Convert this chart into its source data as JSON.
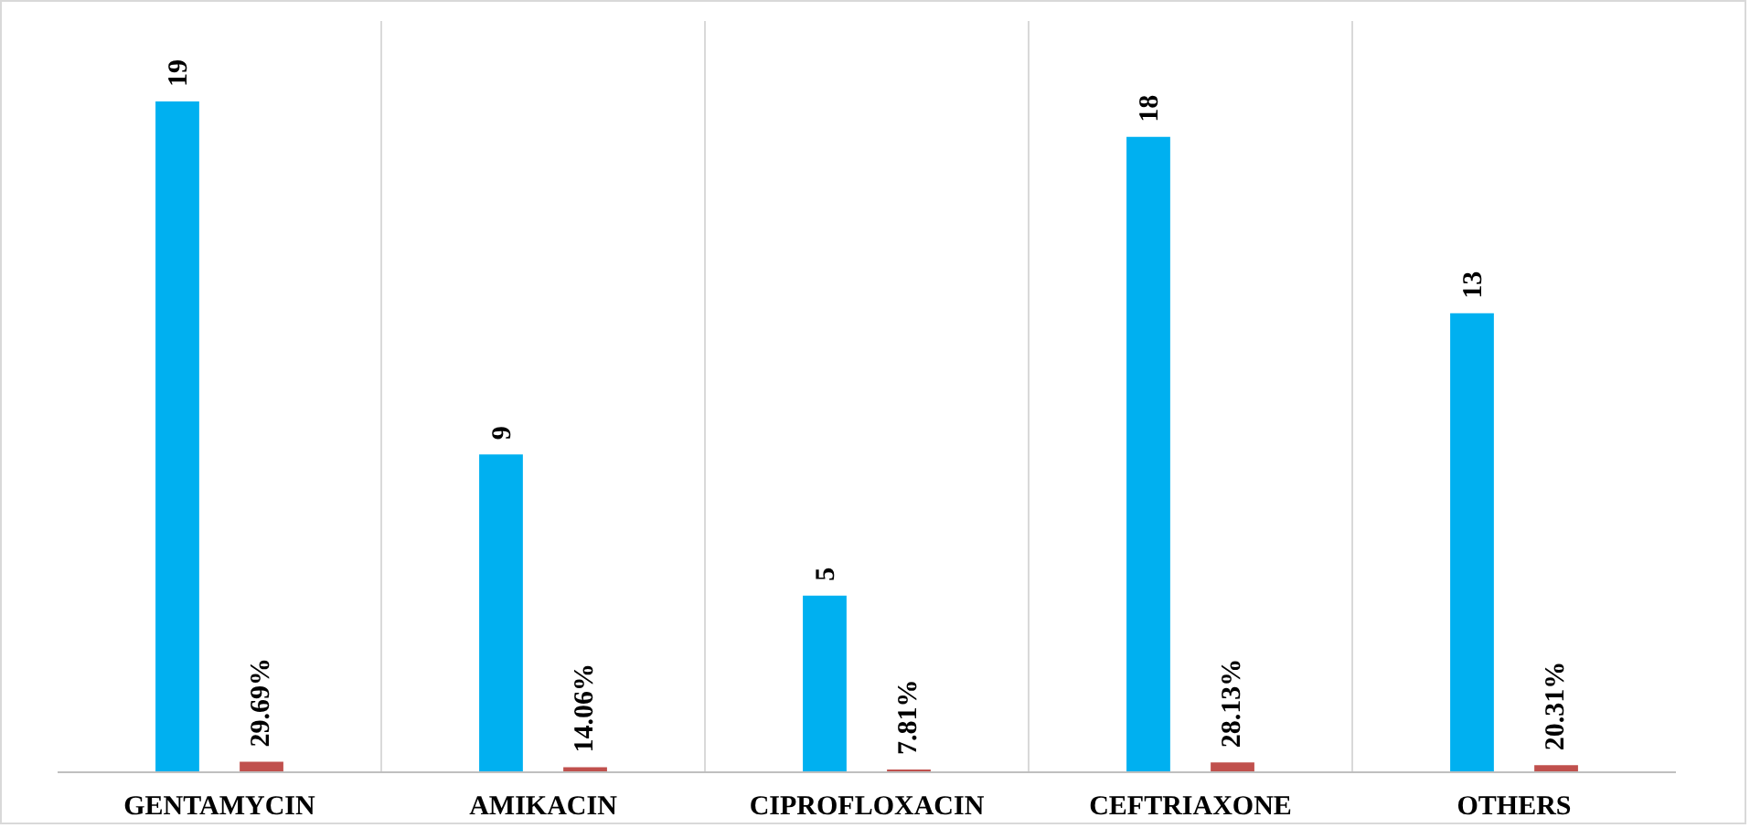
{
  "chart_data": {
    "type": "bar",
    "categories": [
      "GENTAMYCIN",
      "AMIKACIN",
      "CIPROFLOXACIN",
      "CEFTRIAXONE",
      "OTHERS"
    ],
    "series": [
      {
        "color": "#00b0f0",
        "values": [
          19,
          9,
          5,
          18,
          13
        ],
        "value_labels": [
          "19",
          "9",
          "5",
          "18",
          "13"
        ]
      },
      {
        "color": "#c0504d",
        "values": [
          0.2969,
          0.1406,
          0.0781,
          0.2813,
          0.2031
        ],
        "value_labels": [
          "29.69%",
          "14.06%",
          "7.81%",
          "28.13%",
          "20.31%"
        ]
      }
    ],
    "grid": "x"
  }
}
